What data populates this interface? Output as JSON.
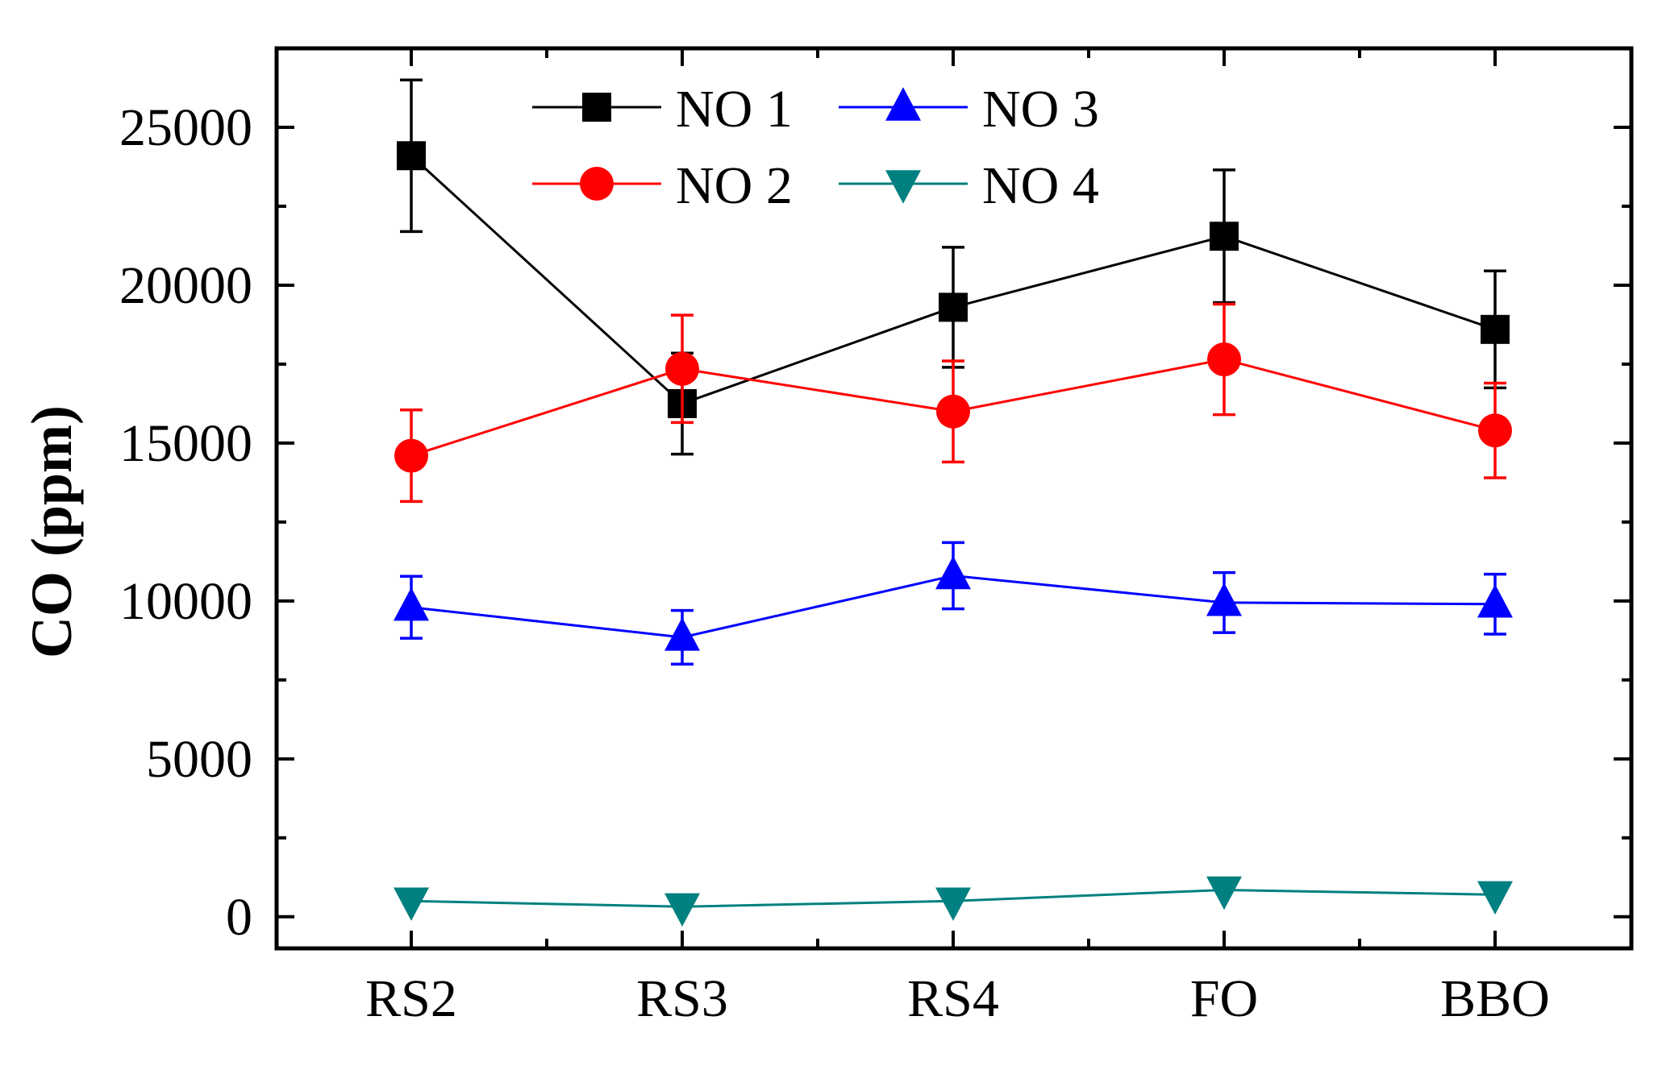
{
  "chart_data": {
    "type": "line",
    "title": "",
    "xlabel": "",
    "ylabel": "CO (ppm)",
    "categories": [
      "RS2",
      "RS3",
      "RS4",
      "FO",
      "BBO"
    ],
    "ylim": [
      -1000,
      27500
    ],
    "yticks": [
      0,
      5000,
      10000,
      15000,
      20000,
      25000
    ],
    "ytick_labels": [
      "0",
      "5000",
      "10000",
      "15000",
      "20000",
      "25000"
    ],
    "grid": false,
    "legend": "top-center",
    "series": [
      {
        "name": "NO 1",
        "color": "#000000",
        "marker": "square",
        "values": [
          24100,
          16250,
          19300,
          21550,
          18600
        ],
        "errors": [
          2400,
          1600,
          1900,
          2100,
          1850
        ]
      },
      {
        "name": "NO 2",
        "color": "#ff0000",
        "marker": "circle",
        "values": [
          14600,
          17350,
          16000,
          17650,
          15400
        ],
        "errors": [
          1450,
          1700,
          1600,
          1750,
          1500
        ]
      },
      {
        "name": "NO 3",
        "color": "#0000ff",
        "marker": "triangle-up",
        "values": [
          9800,
          8850,
          10800,
          9950,
          9900
        ],
        "errors": [
          980,
          850,
          1050,
          950,
          950
        ]
      },
      {
        "name": "NO 4",
        "color": "#008080",
        "marker": "triangle-down",
        "values": [
          500,
          320,
          500,
          850,
          700
        ],
        "errors": [
          0,
          0,
          0,
          0,
          0
        ]
      }
    ]
  }
}
